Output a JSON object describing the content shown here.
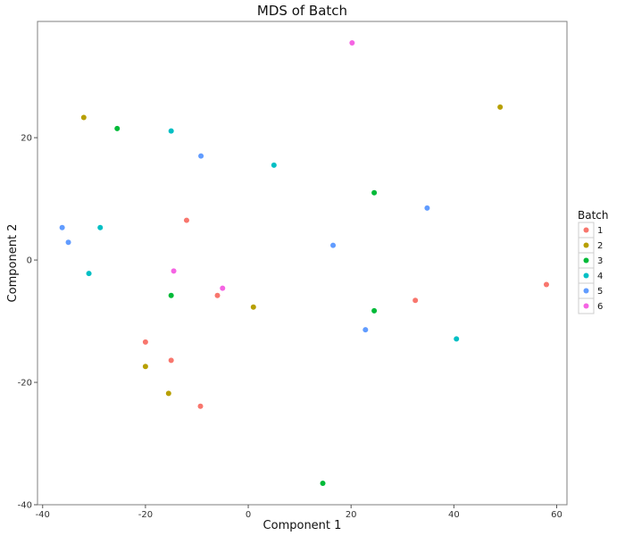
{
  "chart_data": {
    "type": "scatter",
    "title": "MDS of Batch",
    "xlabel": "Component 1",
    "ylabel": "Component 2",
    "xlim": [
      -41,
      62
    ],
    "ylim": [
      -40,
      39
    ],
    "xticks": [
      -40,
      -20,
      0,
      20,
      40,
      60
    ],
    "yticks": [
      -40,
      -20,
      0,
      20
    ],
    "grid": false,
    "legend": {
      "title": "Batch",
      "placement": "right"
    },
    "series": [
      {
        "name": "1",
        "color": "#F8766D",
        "points": [
          [
            -12,
            6.5
          ],
          [
            -6,
            -5.8
          ],
          [
            32.5,
            -6.6
          ],
          [
            58,
            -4
          ],
          [
            -20,
            -13.4
          ],
          [
            -15,
            -16.4
          ],
          [
            -9.3,
            -23.9
          ]
        ]
      },
      {
        "name": "2",
        "color": "#B79F00",
        "points": [
          [
            -32,
            23.3
          ],
          [
            49,
            25
          ],
          [
            1,
            -7.7
          ],
          [
            -20,
            -17.4
          ],
          [
            -15.5,
            -21.8
          ]
        ]
      },
      {
        "name": "3",
        "color": "#00BA38",
        "points": [
          [
            -25.5,
            21.5
          ],
          [
            24.5,
            11
          ],
          [
            -15,
            -5.8
          ],
          [
            24.5,
            -8.3
          ],
          [
            14.5,
            -36.5
          ]
        ]
      },
      {
        "name": "4",
        "color": "#00BFC4",
        "points": [
          [
            -15,
            21.1
          ],
          [
            5,
            15.5
          ],
          [
            -28.8,
            5.3
          ],
          [
            -31,
            -2.2
          ],
          [
            40.5,
            -12.9
          ]
        ]
      },
      {
        "name": "5",
        "color": "#619CFF",
        "points": [
          [
            -9.2,
            17
          ],
          [
            -36.2,
            5.3
          ],
          [
            -35,
            2.9
          ],
          [
            34.8,
            8.5
          ],
          [
            16.5,
            2.4
          ],
          [
            22.8,
            -11.4
          ]
        ]
      },
      {
        "name": "6",
        "color": "#F564E3",
        "points": [
          [
            20.2,
            35.5
          ],
          [
            -14.5,
            -1.8
          ],
          [
            -5,
            -4.6
          ]
        ]
      }
    ]
  }
}
